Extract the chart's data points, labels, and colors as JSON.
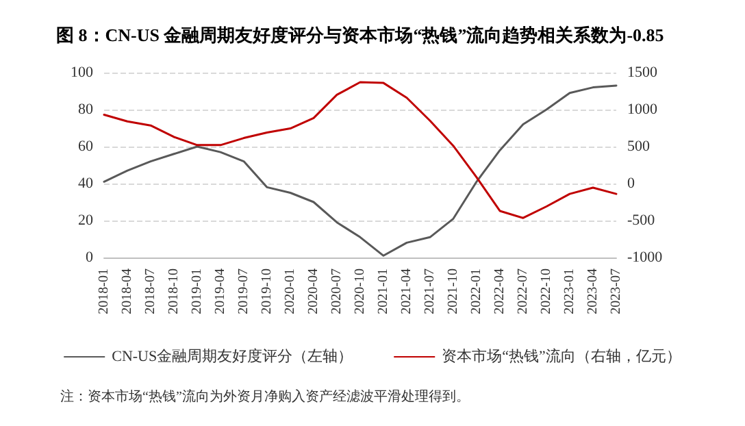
{
  "chart_data": {
    "type": "line",
    "title": "图 8：CN-US 金融周期友好度评分与资本市场“热钱”流向趋势相关系数为-0.85",
    "categories": [
      "2018-01",
      "2018-04",
      "2018-07",
      "2018-10",
      "2019-01",
      "2019-04",
      "2019-07",
      "2019-10",
      "2020-01",
      "2020-04",
      "2020-07",
      "2020-10",
      "2021-01",
      "2021-04",
      "2021-07",
      "2021-10",
      "2022-01",
      "2022-04",
      "2022-07",
      "2022-10",
      "2023-01",
      "2023-04",
      "2023-07"
    ],
    "series": [
      {
        "name": "CN-US金融周期友好度评分（左轴）",
        "color": "#595959",
        "values": [
          41,
          47,
          52,
          56,
          60,
          57,
          52,
          38,
          35,
          30,
          19,
          11,
          1,
          8,
          11,
          21,
          41,
          58,
          72,
          80,
          89,
          92,
          93
        ]
      },
      {
        "name": "资本市场“热钱”流向（右轴，亿元）",
        "color": "#c00000",
        "axis": "y2",
        "values": [
          930,
          840,
          785,
          630,
          520,
          520,
          615,
          690,
          745,
          885,
          1200,
          1370,
          1360,
          1160,
          850,
          510,
          85,
          -370,
          -465,
          -310,
          -140,
          -55,
          -140
        ]
      }
    ],
    "ylim": [
      0,
      100
    ],
    "yticks": [
      0,
      20,
      40,
      60,
      80,
      100
    ],
    "y2lim": [
      -1000,
      1500
    ],
    "y2ticks": [
      -1000,
      -500,
      0,
      500,
      1000,
      1500
    ],
    "grid": "y",
    "legend": "bottom",
    "marker": "none",
    "line_style": "solid",
    "annotations": [
      "注：资本市场“热钱”流向为外资月净购入资产经滤波平滑处理得到。"
    ]
  }
}
